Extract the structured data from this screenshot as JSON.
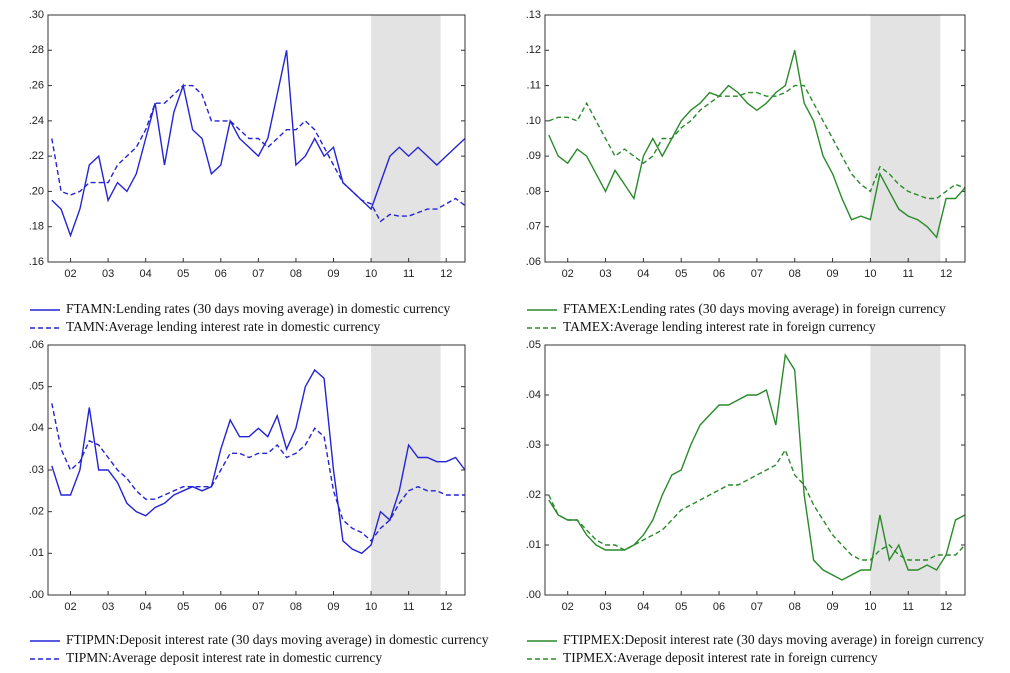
{
  "chart_data": [
    {
      "type": "line",
      "shade": [
        2010,
        2011.85
      ],
      "x": [
        2001.5,
        2001.75,
        2002,
        2002.25,
        2002.5,
        2002.75,
        2003,
        2003.25,
        2003.5,
        2003.75,
        2004,
        2004.25,
        2004.5,
        2004.75,
        2005,
        2005.25,
        2005.5,
        2005.75,
        2006,
        2006.25,
        2006.5,
        2006.75,
        2007,
        2007.25,
        2007.5,
        2007.75,
        2008,
        2008.25,
        2008.5,
        2008.75,
        2009,
        2009.25,
        2009.5,
        2009.75,
        2010,
        2010.25,
        2010.5,
        2010.75,
        2011,
        2011.25,
        2011.5,
        2011.75,
        2012,
        2012.25,
        2012.5
      ],
      "xlim": [
        2001.4,
        2012.5
      ],
      "xticks": [
        {
          "value": 2002,
          "label": "02"
        },
        {
          "value": 2003,
          "label": "03"
        },
        {
          "value": 2004,
          "label": "04"
        },
        {
          "value": 2005,
          "label": "05"
        },
        {
          "value": 2006,
          "label": "06"
        },
        {
          "value": 2007,
          "label": "07"
        },
        {
          "value": 2008,
          "label": "08"
        },
        {
          "value": 2009,
          "label": "09"
        },
        {
          "value": 2010,
          "label": "10"
        },
        {
          "value": 2011,
          "label": "11"
        },
        {
          "value": 2012,
          "label": "12"
        }
      ],
      "ylim": [
        0.16,
        0.3
      ],
      "yticks": [
        {
          "value": 0.16,
          "label": ".16"
        },
        {
          "value": 0.18,
          "label": ".18"
        },
        {
          "value": 0.2,
          "label": ".20"
        },
        {
          "value": 0.22,
          "label": ".22"
        },
        {
          "value": 0.24,
          "label": ".24"
        },
        {
          "value": 0.26,
          "label": ".26"
        },
        {
          "value": 0.28,
          "label": ".28"
        },
        {
          "value": 0.3,
          "label": ".30"
        }
      ],
      "series": [
        {
          "name": "FTAMN:Lending rates (30 days moving average) in domestic currency",
          "color": "#2424d6",
          "dash": false,
          "values": [
            0.195,
            0.19,
            0.175,
            0.19,
            0.215,
            0.22,
            0.195,
            0.205,
            0.2,
            0.21,
            0.23,
            0.25,
            0.215,
            0.245,
            0.26,
            0.235,
            0.23,
            0.21,
            0.215,
            0.24,
            0.23,
            0.225,
            0.22,
            0.23,
            0.255,
            0.28,
            0.215,
            0.22,
            0.23,
            0.22,
            0.225,
            0.205,
            0.2,
            0.195,
            0.19,
            0.205,
            0.22,
            0.225,
            0.22,
            0.225,
            0.22,
            0.215,
            0.22,
            0.225,
            0.23
          ]
        },
        {
          "name": "TAMN:Average lending interest rate in domestic currency",
          "color": "#2424d6",
          "dash": true,
          "values": [
            0.23,
            0.2,
            0.198,
            0.2,
            0.205,
            0.205,
            0.205,
            0.215,
            0.22,
            0.225,
            0.235,
            0.25,
            0.25,
            0.255,
            0.26,
            0.26,
            0.255,
            0.24,
            0.24,
            0.24,
            0.235,
            0.23,
            0.23,
            0.225,
            0.23,
            0.235,
            0.235,
            0.24,
            0.235,
            0.225,
            0.215,
            0.205,
            0.2,
            0.195,
            0.193,
            0.183,
            0.187,
            0.186,
            0.186,
            0.188,
            0.19,
            0.19,
            0.193,
            0.196,
            0.192
          ]
        }
      ]
    },
    {
      "type": "line",
      "shade": [
        2010,
        2011.85
      ],
      "x": [
        2001.5,
        2001.75,
        2002,
        2002.25,
        2002.5,
        2002.75,
        2003,
        2003.25,
        2003.5,
        2003.75,
        2004,
        2004.25,
        2004.5,
        2004.75,
        2005,
        2005.25,
        2005.5,
        2005.75,
        2006,
        2006.25,
        2006.5,
        2006.75,
        2007,
        2007.25,
        2007.5,
        2007.75,
        2008,
        2008.25,
        2008.5,
        2008.75,
        2009,
        2009.25,
        2009.5,
        2009.75,
        2010,
        2010.25,
        2010.5,
        2010.75,
        2011,
        2011.25,
        2011.5,
        2011.75,
        2012,
        2012.25,
        2012.5
      ],
      "xlim": [
        2001.4,
        2012.5
      ],
      "xticks": [
        {
          "value": 2002,
          "label": "02"
        },
        {
          "value": 2003,
          "label": "03"
        },
        {
          "value": 2004,
          "label": "04"
        },
        {
          "value": 2005,
          "label": "05"
        },
        {
          "value": 2006,
          "label": "06"
        },
        {
          "value": 2007,
          "label": "07"
        },
        {
          "value": 2008,
          "label": "08"
        },
        {
          "value": 2009,
          "label": "09"
        },
        {
          "value": 2010,
          "label": "10"
        },
        {
          "value": 2011,
          "label": "11"
        },
        {
          "value": 2012,
          "label": "12"
        }
      ],
      "ylim": [
        0.06,
        0.13
      ],
      "yticks": [
        {
          "value": 0.06,
          "label": ".06"
        },
        {
          "value": 0.07,
          "label": ".07"
        },
        {
          "value": 0.08,
          "label": ".08"
        },
        {
          "value": 0.09,
          "label": ".09"
        },
        {
          "value": 0.1,
          "label": ".10"
        },
        {
          "value": 0.11,
          "label": ".11"
        },
        {
          "value": 0.12,
          "label": ".12"
        },
        {
          "value": 0.13,
          "label": ".13"
        }
      ],
      "series": [
        {
          "name": "FTAMEX:Lending rates (30 days moving average) in foreign currency",
          "color": "#2a8a2a",
          "dash": false,
          "values": [
            0.096,
            0.09,
            0.088,
            0.092,
            0.09,
            0.085,
            0.08,
            0.086,
            0.082,
            0.078,
            0.09,
            0.095,
            0.09,
            0.095,
            0.1,
            0.103,
            0.105,
            0.108,
            0.107,
            0.11,
            0.108,
            0.105,
            0.103,
            0.105,
            0.108,
            0.11,
            0.12,
            0.105,
            0.1,
            0.09,
            0.085,
            0.078,
            0.072,
            0.073,
            0.072,
            0.085,
            0.08,
            0.075,
            0.073,
            0.072,
            0.07,
            0.067,
            0.078,
            0.078,
            0.081
          ]
        },
        {
          "name": "TAMEX:Average lending interest rate in foreign currency",
          "color": "#2a8a2a",
          "dash": true,
          "values": [
            0.1,
            0.101,
            0.101,
            0.1,
            0.105,
            0.1,
            0.095,
            0.09,
            0.092,
            0.09,
            0.088,
            0.09,
            0.095,
            0.095,
            0.098,
            0.1,
            0.103,
            0.105,
            0.107,
            0.107,
            0.107,
            0.108,
            0.108,
            0.107,
            0.107,
            0.108,
            0.11,
            0.11,
            0.105,
            0.1,
            0.095,
            0.09,
            0.085,
            0.082,
            0.08,
            0.087,
            0.085,
            0.082,
            0.08,
            0.079,
            0.078,
            0.078,
            0.08,
            0.082,
            0.081
          ]
        }
      ]
    },
    {
      "type": "line",
      "shade": [
        2010,
        2011.85
      ],
      "x": [
        2001.5,
        2001.75,
        2002,
        2002.25,
        2002.5,
        2002.75,
        2003,
        2003.25,
        2003.5,
        2003.75,
        2004,
        2004.25,
        2004.5,
        2004.75,
        2005,
        2005.25,
        2005.5,
        2005.75,
        2006,
        2006.25,
        2006.5,
        2006.75,
        2007,
        2007.25,
        2007.5,
        2007.75,
        2008,
        2008.25,
        2008.5,
        2008.75,
        2009,
        2009.25,
        2009.5,
        2009.75,
        2010,
        2010.25,
        2010.5,
        2010.75,
        2011,
        2011.25,
        2011.5,
        2011.75,
        2012,
        2012.25,
        2012.5
      ],
      "xlim": [
        2001.4,
        2012.5
      ],
      "xticks": [
        {
          "value": 2002,
          "label": "02"
        },
        {
          "value": 2003,
          "label": "03"
        },
        {
          "value": 2004,
          "label": "04"
        },
        {
          "value": 2005,
          "label": "05"
        },
        {
          "value": 2006,
          "label": "06"
        },
        {
          "value": 2007,
          "label": "07"
        },
        {
          "value": 2008,
          "label": "08"
        },
        {
          "value": 2009,
          "label": "09"
        },
        {
          "value": 2010,
          "label": "10"
        },
        {
          "value": 2011,
          "label": "11"
        },
        {
          "value": 2012,
          "label": "12"
        }
      ],
      "ylim": [
        0,
        0.06
      ],
      "yticks": [
        {
          "value": 0,
          "label": ".00"
        },
        {
          "value": 0.01,
          "label": ".01"
        },
        {
          "value": 0.02,
          "label": ".02"
        },
        {
          "value": 0.03,
          "label": ".03"
        },
        {
          "value": 0.04,
          "label": ".04"
        },
        {
          "value": 0.05,
          "label": ".05"
        },
        {
          "value": 0.06,
          "label": ".06"
        }
      ],
      "series": [
        {
          "name": "FTIPMN:Deposit interest rate (30 days moving average) in domestic currency",
          "color": "#2424d6",
          "dash": false,
          "values": [
            0.031,
            0.024,
            0.024,
            0.03,
            0.045,
            0.03,
            0.03,
            0.027,
            0.022,
            0.02,
            0.019,
            0.021,
            0.022,
            0.024,
            0.025,
            0.026,
            0.025,
            0.026,
            0.035,
            0.042,
            0.038,
            0.038,
            0.04,
            0.038,
            0.043,
            0.035,
            0.04,
            0.05,
            0.054,
            0.052,
            0.03,
            0.013,
            0.011,
            0.01,
            0.012,
            0.02,
            0.018,
            0.025,
            0.036,
            0.033,
            0.033,
            0.032,
            0.032,
            0.033,
            0.03
          ]
        },
        {
          "name": "TIPMN:Average deposit interest rate in domestic currency",
          "color": "#2424d6",
          "dash": true,
          "values": [
            0.046,
            0.035,
            0.03,
            0.032,
            0.037,
            0.036,
            0.033,
            0.03,
            0.028,
            0.025,
            0.023,
            0.023,
            0.024,
            0.025,
            0.026,
            0.026,
            0.026,
            0.026,
            0.03,
            0.034,
            0.034,
            0.033,
            0.034,
            0.034,
            0.036,
            0.033,
            0.034,
            0.036,
            0.04,
            0.038,
            0.025,
            0.018,
            0.016,
            0.015,
            0.013,
            0.016,
            0.018,
            0.022,
            0.025,
            0.026,
            0.025,
            0.025,
            0.024,
            0.024,
            0.024
          ]
        }
      ]
    },
    {
      "type": "line",
      "shade": [
        2010,
        2011.85
      ],
      "x": [
        2001.5,
        2001.75,
        2002,
        2002.25,
        2002.5,
        2002.75,
        2003,
        2003.25,
        2003.5,
        2003.75,
        2004,
        2004.25,
        2004.5,
        2004.75,
        2005,
        2005.25,
        2005.5,
        2005.75,
        2006,
        2006.25,
        2006.5,
        2006.75,
        2007,
        2007.25,
        2007.5,
        2007.75,
        2008,
        2008.25,
        2008.5,
        2008.75,
        2009,
        2009.25,
        2009.5,
        2009.75,
        2010,
        2010.25,
        2010.5,
        2010.75,
        2011,
        2011.25,
        2011.5,
        2011.75,
        2012,
        2012.25,
        2012.5
      ],
      "xlim": [
        2001.4,
        2012.5
      ],
      "xticks": [
        {
          "value": 2002,
          "label": "02"
        },
        {
          "value": 2003,
          "label": "03"
        },
        {
          "value": 2004,
          "label": "04"
        },
        {
          "value": 2005,
          "label": "05"
        },
        {
          "value": 2006,
          "label": "06"
        },
        {
          "value": 2007,
          "label": "07"
        },
        {
          "value": 2008,
          "label": "08"
        },
        {
          "value": 2009,
          "label": "09"
        },
        {
          "value": 2010,
          "label": "10"
        },
        {
          "value": 2011,
          "label": "11"
        },
        {
          "value": 2012,
          "label": "12"
        }
      ],
      "ylim": [
        0,
        0.05
      ],
      "yticks": [
        {
          "value": 0,
          "label": ".00"
        },
        {
          "value": 0.01,
          "label": ".01"
        },
        {
          "value": 0.02,
          "label": ".02"
        },
        {
          "value": 0.03,
          "label": ".03"
        },
        {
          "value": 0.04,
          "label": ".04"
        },
        {
          "value": 0.05,
          "label": ".05"
        }
      ],
      "series": [
        {
          "name": "FTIPMEX:Deposit interest rate (30 days moving average) in foreign currency",
          "color": "#2a8a2a",
          "dash": false,
          "values": [
            0.019,
            0.016,
            0.015,
            0.015,
            0.012,
            0.01,
            0.009,
            0.009,
            0.009,
            0.01,
            0.012,
            0.015,
            0.02,
            0.024,
            0.025,
            0.03,
            0.034,
            0.036,
            0.038,
            0.038,
            0.039,
            0.04,
            0.04,
            0.041,
            0.034,
            0.048,
            0.045,
            0.02,
            0.007,
            0.005,
            0.004,
            0.003,
            0.004,
            0.005,
            0.005,
            0.016,
            0.007,
            0.01,
            0.005,
            0.005,
            0.006,
            0.005,
            0.008,
            0.015,
            0.016
          ]
        },
        {
          "name": "TIPMEX:Average deposit interest rate in foreign currency",
          "color": "#2a8a2a",
          "dash": true,
          "values": [
            0.02,
            0.016,
            0.015,
            0.015,
            0.013,
            0.011,
            0.01,
            0.01,
            0.009,
            0.01,
            0.011,
            0.012,
            0.013,
            0.015,
            0.017,
            0.018,
            0.019,
            0.02,
            0.021,
            0.022,
            0.022,
            0.023,
            0.024,
            0.025,
            0.026,
            0.029,
            0.024,
            0.022,
            0.018,
            0.015,
            0.012,
            0.01,
            0.008,
            0.007,
            0.007,
            0.009,
            0.01,
            0.008,
            0.007,
            0.007,
            0.007,
            0.008,
            0.008,
            0.008,
            0.01
          ]
        }
      ]
    }
  ]
}
